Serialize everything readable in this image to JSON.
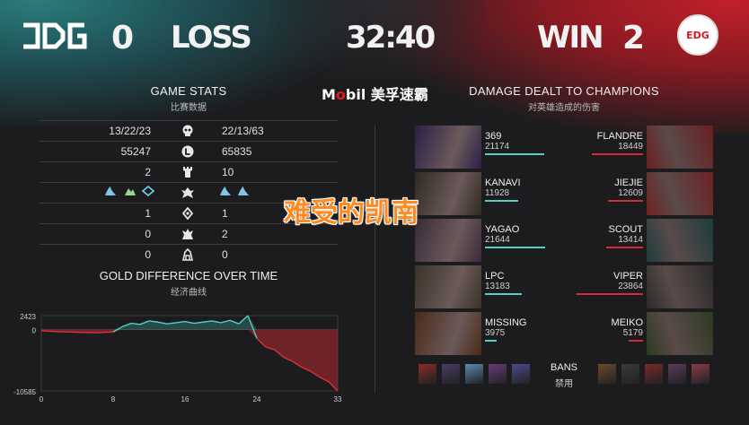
{
  "header": {
    "left_team": "JDG",
    "left_score": "0",
    "left_result": "LOSS",
    "timer": "32:40",
    "right_result": "WIN",
    "right_score": "2",
    "right_team": "EDG"
  },
  "sponsor": {
    "brand_m": "M",
    "brand_o": "o",
    "brand_rest": "bil",
    "brand_cn": "美孚速霸"
  },
  "game_stats": {
    "title": "GAME STATS",
    "subtitle": "比赛数据",
    "rows": [
      {
        "left": "13/22/23",
        "icon": "skull-icon",
        "right": "22/13/63"
      },
      {
        "left": "55247",
        "icon": "gold-icon",
        "right": "65835"
      },
      {
        "left": "2",
        "icon": "tower-icon",
        "right": "10"
      },
      {
        "left": "",
        "icon": "dragon-icon",
        "right": ""
      },
      {
        "left": "1",
        "icon": "herald-icon",
        "right": "1"
      },
      {
        "left": "0",
        "icon": "baron-icon",
        "right": "2"
      },
      {
        "left": "0",
        "icon": "inhibitor-icon",
        "right": "0"
      }
    ]
  },
  "gold_chart": {
    "title": "GOLD DIFFERENCE OVER TIME",
    "subtitle": "经济曲线",
    "y_top": "2423",
    "y_zero": "0",
    "y_bottom": "-10585",
    "x_ticks": [
      "0",
      "8",
      "16",
      "24",
      "33"
    ]
  },
  "chart_data": {
    "type": "area",
    "title": "GOLD DIFFERENCE OVER TIME",
    "xlabel": "",
    "ylabel": "",
    "ylim": [
      -10585,
      2423
    ],
    "x": [
      0,
      2,
      4,
      6,
      8,
      9,
      10,
      11,
      12,
      13,
      14,
      15,
      16,
      17,
      18,
      19,
      20,
      21,
      22,
      23,
      24,
      25,
      26,
      27,
      28,
      29,
      30,
      31,
      32,
      33
    ],
    "values": [
      -200,
      -350,
      -450,
      -550,
      -400,
      500,
      1100,
      900,
      1500,
      1300,
      1000,
      1200,
      1400,
      1100,
      1300,
      1500,
      1200,
      1600,
      1000,
      2423,
      -1500,
      -3000,
      -3500,
      -4800,
      -5500,
      -6500,
      -7200,
      -8200,
      -9000,
      -10585
    ],
    "grid": false
  },
  "damage": {
    "title": "DAMAGE DEALT TO CHAMPIONS",
    "subtitle": "对英雄造成的伤害",
    "rows": [
      {
        "left_name": "369",
        "left_val": "21174",
        "left_frac": 0.89,
        "right_name": "FLANDRE",
        "right_val": "18449",
        "right_frac": 0.77
      },
      {
        "left_name": "KANAVI",
        "left_val": "11928",
        "left_frac": 0.5,
        "right_name": "JIEJIE",
        "right_val": "12609",
        "right_frac": 0.53
      },
      {
        "left_name": "YAGAO",
        "left_val": "21644",
        "left_frac": 0.91,
        "right_name": "SCOUT",
        "right_val": "13414",
        "right_frac": 0.56
      },
      {
        "left_name": "LPC",
        "left_val": "13183",
        "left_frac": 0.55,
        "right_name": "VIPER",
        "right_val": "23864",
        "right_frac": 1.0
      },
      {
        "left_name": "MISSING",
        "left_val": "3975",
        "left_frac": 0.17,
        "right_name": "MEIKO",
        "right_val": "5179",
        "right_frac": 0.22
      }
    ]
  },
  "bans": {
    "label": "BANS",
    "sub": "禁用"
  },
  "overlay": "难受的凯南",
  "colors": {
    "left_team": "#4fd1c5",
    "right_team": "#e0303a",
    "left_bar": "#4fd1c5",
    "right_bar": "#d42a36"
  }
}
